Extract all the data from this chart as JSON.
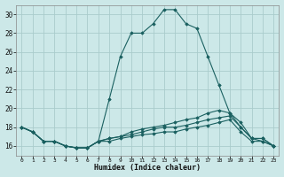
{
  "xlabel": "Humidex (Indice chaleur)",
  "bg_color": "#cce8e8",
  "grid_color": "#aacccc",
  "line_color": "#1a6060",
  "xlim": [
    -0.5,
    23.5
  ],
  "ylim": [
    15.0,
    31.0
  ],
  "yticks": [
    16,
    18,
    20,
    22,
    24,
    26,
    28,
    30
  ],
  "xticks": [
    0,
    1,
    2,
    3,
    4,
    5,
    6,
    7,
    8,
    9,
    10,
    11,
    12,
    13,
    14,
    15,
    16,
    17,
    18,
    19,
    20,
    21,
    22,
    23
  ],
  "series": [
    {
      "x": [
        0,
        1,
        2,
        3,
        4,
        5,
        6,
        7,
        8,
        9,
        10,
        11,
        12,
        13,
        14,
        15,
        16,
        17,
        18,
        19,
        20,
        21,
        22,
        23
      ],
      "y": [
        18,
        17.5,
        16.5,
        16.5,
        16.0,
        15.8,
        15.8,
        16.5,
        21.0,
        25.5,
        28.0,
        28.0,
        29.0,
        30.5,
        30.5,
        29.0,
        28.5,
        25.5,
        22.5,
        19.5,
        18.5,
        16.8,
        16.8,
        16.0
      ]
    },
    {
      "x": [
        0,
        1,
        2,
        3,
        4,
        5,
        6,
        7,
        8,
        9,
        10,
        11,
        12,
        13,
        14,
        15,
        16,
        17,
        18,
        19,
        20,
        21,
        22,
        23
      ],
      "y": [
        18,
        17.5,
        16.5,
        16.5,
        16.0,
        15.8,
        15.8,
        16.5,
        16.8,
        17.0,
        17.5,
        17.8,
        18.0,
        18.2,
        18.5,
        18.8,
        19.0,
        19.5,
        19.8,
        19.5,
        18.0,
        16.8,
        16.8,
        16.0
      ]
    },
    {
      "x": [
        0,
        1,
        2,
        3,
        4,
        5,
        6,
        7,
        8,
        9,
        10,
        11,
        12,
        13,
        14,
        15,
        16,
        17,
        18,
        19,
        20,
        21,
        22,
        23
      ],
      "y": [
        18,
        17.5,
        16.5,
        16.5,
        16.0,
        15.8,
        15.8,
        16.5,
        16.8,
        17.0,
        17.2,
        17.5,
        17.8,
        18.0,
        18.0,
        18.2,
        18.5,
        18.8,
        19.0,
        19.2,
        18.0,
        16.8,
        16.5,
        16.0
      ]
    },
    {
      "x": [
        0,
        1,
        2,
        3,
        4,
        5,
        6,
        7,
        8,
        9,
        10,
        11,
        12,
        13,
        14,
        15,
        16,
        17,
        18,
        19,
        20,
        21,
        22,
        23
      ],
      "y": [
        18,
        17.5,
        16.5,
        16.5,
        16.0,
        15.8,
        15.8,
        16.5,
        16.5,
        16.8,
        17.0,
        17.2,
        17.3,
        17.5,
        17.5,
        17.8,
        18.0,
        18.2,
        18.5,
        18.8,
        17.5,
        16.5,
        16.5,
        16.0
      ]
    }
  ]
}
